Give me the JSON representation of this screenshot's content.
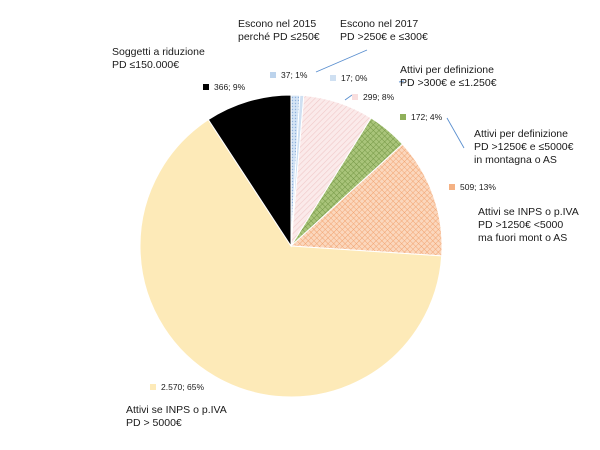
{
  "chart_data": {
    "type": "pie",
    "title": "",
    "slices": [
      {
        "label": "Escono nel 2015\nperché PD ≤250€",
        "value": 37,
        "percent": 1,
        "data_label": "37; 1%",
        "color": "#bcd3ec",
        "pattern": "dots-blue"
      },
      {
        "label": "Escono nel 2017\nPD >250€ e ≤300€",
        "value": 17,
        "percent": 0,
        "data_label": "17; 0%",
        "color": "#cfe0f2",
        "pattern": "solid"
      },
      {
        "label": "Attivi per definizione\nPD >300€ e ≤1.250€",
        "value": 299,
        "percent": 8,
        "data_label": "299; 8%",
        "color": "#f8dede",
        "pattern": "hatch-pink"
      },
      {
        "label": "Attivi per definizione\nPD >1250€ e ≤5000€\nin montagna o AS",
        "value": 172,
        "percent": 4,
        "data_label": "172; 4%",
        "color": "#8fb05a",
        "pattern": "cross-green"
      },
      {
        "label": "Attivi se INPS o p.IVA\nPD >1250€ <5000\nma fuori mont o AS",
        "value": 509,
        "percent": 13,
        "data_label": "509; 13%",
        "color": "#f4b183",
        "pattern": "cross-orange"
      },
      {
        "label": "Attivi se INPS o p.IVA\nPD > 5000€",
        "value": 2570,
        "percent": 65,
        "data_label": "2.570; 65%",
        "color": "#fdeab8",
        "pattern": "solid"
      },
      {
        "label": "Soggetti a riduzione\nPD ≤150.000€",
        "value": 366,
        "percent": 9,
        "data_label": "366; 9%",
        "color": "#000000",
        "pattern": "solid"
      }
    ]
  }
}
